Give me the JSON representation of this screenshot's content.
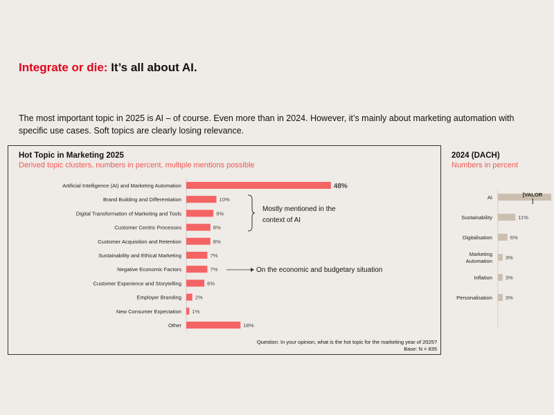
{
  "slide": {
    "title_highlight": "Integrate or die:",
    "title_rest": " It’s all about AI.",
    "intro": "The most important topic in 2025 is AI – of course. Even more than in 2024. However, it’s mainly about marketing automation with specific use cases. Soft topics are clearly losing relevance."
  },
  "colors": {
    "accent": "#e3001b",
    "bar_main": "#f46464",
    "bar_2024": "#cdbfaf",
    "subtitle": "#f25656"
  },
  "chart_data": [
    {
      "type": "bar",
      "orientation": "horizontal",
      "title": "Hot Topic in Marketing 2025",
      "subtitle": "Derived topic clusters, numbers in percent, multiple mentions possible",
      "categories": [
        "Artificial Intelligence (AI) and Marketing Automation",
        "Brand Building and Differentiation",
        "Digital Transformation of Marketing and Tools",
        "Customer Centric Processes",
        "Customer Acquisition and Retention",
        "Sustainability and Ethical Marketing",
        "Negative Economic Factors",
        "Customer Experience and Storytelling",
        "Employer Branding",
        "New Consumer Expectation",
        "Other"
      ],
      "values": [
        48,
        10,
        9,
        8,
        8,
        7,
        7,
        6,
        2,
        1,
        18
      ],
      "value_labels": [
        "48%",
        "10%",
        "9%",
        "8%",
        "8%",
        "7%",
        "7%",
        "6%",
        "2%",
        "1%",
        "18%"
      ],
      "annotations": [
        "Mostly mentioned in the context of AI",
        "On the economic and budgetary situation"
      ],
      "question": "Question: In your opinion, what is the hot topic for the marketing year of 2025?",
      "base": "Base: N = 835"
    },
    {
      "type": "bar",
      "orientation": "horizontal",
      "title": "2024 (DACH)",
      "subtitle": "Numbers in percent",
      "categories": [
        "AI",
        "Sustainability",
        "Digitalisation",
        "Marketing Automation",
        "Inflation",
        "Personalisation"
      ],
      "values": [
        null,
        11,
        6,
        3,
        3,
        3
      ],
      "value_labels": [
        "[VALOR]",
        "11%",
        "6%",
        "3%",
        "3%",
        "3%"
      ]
    }
  ]
}
